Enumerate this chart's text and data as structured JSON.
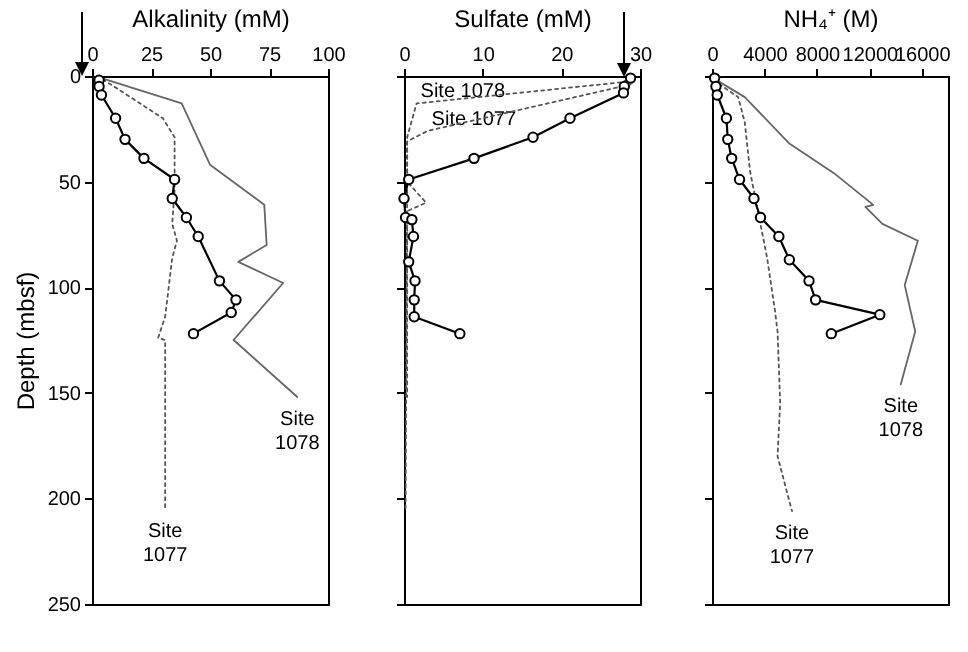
{
  "chart_data": [
    {
      "type": "line",
      "xlabel": "Alkalinity (mM)",
      "ylabel": "Depth (mbsf)",
      "xlim": [
        0,
        100
      ],
      "xticks": [
        0,
        25,
        50,
        75,
        100
      ],
      "ylim": [
        250,
        0
      ],
      "yticks": [
        0,
        50,
        100,
        150,
        200,
        250
      ],
      "grid": false,
      "series": [
        {
          "color": "#000000",
          "marker": "circle",
          "line_style": "solid",
          "x": [
            3,
            3,
            4,
            10,
            14,
            22,
            35,
            34,
            40,
            45,
            54,
            61,
            59,
            43
          ],
          "values": [
            2,
            5,
            9,
            20,
            30,
            39,
            49,
            58,
            67,
            76,
            97,
            106,
            112,
            122
          ]
        },
        {
          "name": "Site 1077",
          "color": "#555555",
          "marker": "none",
          "line_style": "dotted",
          "x": [
            2,
            8,
            30,
            35,
            35,
            35,
            34,
            36,
            34,
            31,
            28,
            31,
            31
          ],
          "values": [
            0,
            4,
            20,
            29,
            38,
            54,
            70,
            78,
            86,
            114,
            124,
            125,
            205
          ]
        },
        {
          "name": "Site 1078",
          "color": "#666666",
          "marker": "none",
          "line_style": "solid",
          "x": [
            4,
            38,
            50,
            73,
            74,
            62,
            81,
            60,
            87
          ],
          "values": [
            1,
            13,
            42,
            61,
            80,
            88,
            98,
            125,
            152
          ]
        }
      ]
    },
    {
      "type": "line",
      "xlabel": "Sulfate (mM)",
      "xlim": [
        0,
        30
      ],
      "xticks": [
        0,
        10,
        20,
        30
      ],
      "ylim": [
        250,
        0
      ],
      "yticks": [
        0,
        50,
        100,
        150,
        200,
        250
      ],
      "grid": false,
      "tick_labels": "x",
      "series": [
        {
          "color": "#000000",
          "marker": "circle",
          "line_style": "solid",
          "x": [
            28.8,
            28,
            27.9,
            21.1,
            16.4,
            8.9,
            0.6,
            0,
            0.2,
            1,
            1.2,
            0.6,
            1.4,
            1.3,
            1.3,
            7.1
          ],
          "values": [
            1,
            5,
            8,
            20,
            29,
            39,
            49,
            58,
            67,
            68,
            76,
            88,
            97,
            106,
            114,
            122
          ]
        },
        {
          "name": "Site 1078",
          "color": "#555555",
          "marker": "none",
          "line_style": "dotted",
          "x": [
            28.4,
            27.6,
            1.6,
            0.4,
            0.4,
            2.8,
            0.4,
            0.4
          ],
          "values": [
            2,
            3,
            13,
            29,
            50,
            60,
            64,
            152
          ]
        },
        {
          "name": "Site 1077",
          "color": "#555555",
          "marker": "none",
          "line_style": "dotted",
          "x": [
            28.8,
            3,
            0.4,
            0.4,
            0.2
          ],
          "values": [
            4,
            26,
            31,
            54,
            205
          ]
        }
      ]
    },
    {
      "type": "line",
      "xlabel": "NH₄⁺ (M)",
      "xlim": [
        0,
        18000
      ],
      "xticks": [
        0,
        4000,
        8000,
        12000,
        16000
      ],
      "ylim": [
        250,
        0
      ],
      "yticks": [
        0,
        50,
        100,
        150,
        200,
        250
      ],
      "grid": false,
      "tick_labels": "x",
      "series": [
        {
          "color": "#000000",
          "marker": "circle",
          "line_style": "solid",
          "x": [
            200,
            300,
            400,
            1100,
            1200,
            1500,
            2100,
            3200,
            3700,
            5100,
            5900,
            7400,
            7900,
            12800,
            9100
          ],
          "values": [
            1,
            5,
            9,
            20,
            30,
            39,
            49,
            58,
            67,
            76,
            87,
            97,
            106,
            113,
            122
          ]
        },
        {
          "name": "Site 1077",
          "color": "#555555",
          "marker": "none",
          "line_style": "dotted",
          "x": [
            100,
            2000,
            2500,
            2900,
            3500,
            4200,
            4800,
            5000,
            5200,
            5000,
            6100
          ],
          "values": [
            2,
            10,
            22,
            45,
            64,
            86,
            111,
            121,
            155,
            180,
            206
          ]
        },
        {
          "name": "Site 1078",
          "color": "#666666",
          "marker": "none",
          "line_style": "solid",
          "x": [
            100,
            2500,
            5900,
            9300,
            12300,
            11700,
            13000,
            15700,
            14700,
            15500,
            14400
          ],
          "values": [
            1,
            10,
            32,
            46,
            61,
            62,
            70,
            78,
            99,
            121,
            146
          ]
        }
      ]
    }
  ]
}
